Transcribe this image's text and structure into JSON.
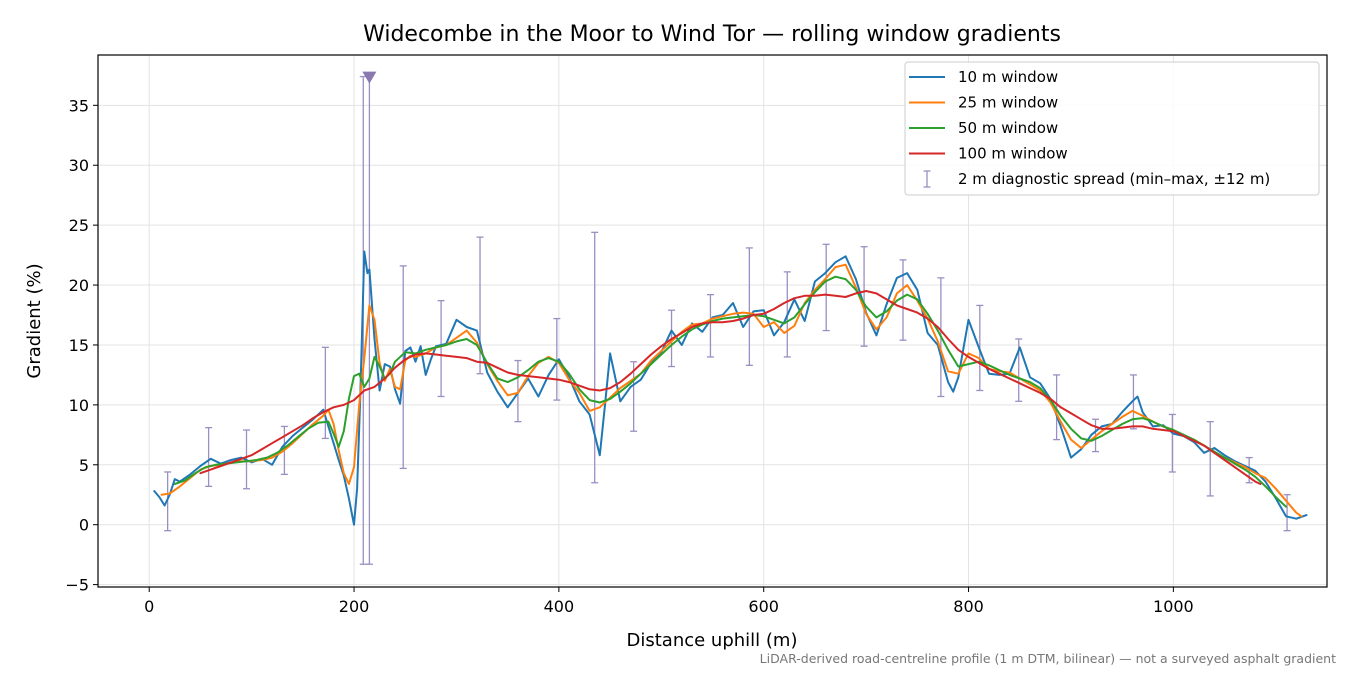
{
  "caption": "LiDAR-derived road-centreline profile (1 m DTM, bilinear) — not a surveyed asphalt gradient",
  "chart_data": {
    "type": "line",
    "title": "Widecombe in the Moor to Wind Tor — rolling window gradients",
    "xlabel": "Distance uphill (m)",
    "ylabel": "Gradient (%)",
    "xlim": [
      -50,
      1150
    ],
    "ylim": [
      -5.2,
      39.2
    ],
    "xticks": [
      0,
      200,
      400,
      600,
      800,
      1000
    ],
    "xtick_labels": [
      "0",
      "200",
      "400",
      "600",
      "800",
      "1000"
    ],
    "yticks": [
      -5,
      0,
      5,
      10,
      15,
      20,
      25,
      30,
      35
    ],
    "ytick_labels": [
      "−5",
      "0",
      "5",
      "10",
      "15",
      "20",
      "25",
      "30",
      "35"
    ],
    "grid": true,
    "legend_position": "top-right",
    "series": [
      {
        "name": "10 m window",
        "color": "#1f77b4",
        "x": [
          5,
          10,
          15,
          20,
          25,
          30,
          40,
          50,
          60,
          70,
          80,
          90,
          100,
          110,
          120,
          130,
          140,
          150,
          160,
          170,
          175,
          180,
          185,
          190,
          195,
          200,
          203,
          206,
          210,
          213,
          215,
          220,
          225,
          230,
          235,
          240,
          245,
          250,
          255,
          260,
          265,
          270,
          275,
          280,
          290,
          300,
          310,
          320,
          330,
          340,
          350,
          360,
          370,
          380,
          390,
          400,
          410,
          420,
          430,
          435,
          440,
          445,
          450,
          460,
          470,
          480,
          490,
          500,
          510,
          520,
          530,
          540,
          550,
          560,
          570,
          580,
          590,
          600,
          610,
          620,
          630,
          640,
          650,
          660,
          670,
          680,
          690,
          700,
          710,
          720,
          730,
          740,
          750,
          760,
          770,
          780,
          785,
          790,
          800,
          810,
          820,
          830,
          840,
          850,
          860,
          870,
          880,
          890,
          900,
          910,
          920,
          930,
          940,
          950,
          960,
          965,
          970,
          980,
          990,
          1000,
          1010,
          1020,
          1030,
          1040,
          1050,
          1060,
          1070,
          1080,
          1090,
          1100,
          1110,
          1120,
          1130
        ],
        "y": [
          2.8,
          2.3,
          1.6,
          2.5,
          3.8,
          3.6,
          4.2,
          4.9,
          5.5,
          5.1,
          5.4,
          5.6,
          5.2,
          5.5,
          5.0,
          6.5,
          7.4,
          8.1,
          8.8,
          9.6,
          8.2,
          6.8,
          5.4,
          4.1,
          2.2,
          0.0,
          3.0,
          10.5,
          22.8,
          21.0,
          21.3,
          15.5,
          11.2,
          13.4,
          13.2,
          11.3,
          10.1,
          14.5,
          14.8,
          13.6,
          14.9,
          12.5,
          13.8,
          14.9,
          15.1,
          17.1,
          16.5,
          16.2,
          12.7,
          11.1,
          9.8,
          11.0,
          12.2,
          10.7,
          12.5,
          13.8,
          12.3,
          10.3,
          9.2,
          7.5,
          5.8,
          10.0,
          14.3,
          10.3,
          11.5,
          12.1,
          13.5,
          14.4,
          16.2,
          15.0,
          16.8,
          16.1,
          17.3,
          17.5,
          18.5,
          16.5,
          17.8,
          17.9,
          15.8,
          16.9,
          18.8,
          17.0,
          20.3,
          21.0,
          21.9,
          22.4,
          20.5,
          17.7,
          15.8,
          18.4,
          20.6,
          21.0,
          19.6,
          16.0,
          15.0,
          11.9,
          11.1,
          12.3,
          17.1,
          14.8,
          12.6,
          12.5,
          12.6,
          14.8,
          12.3,
          11.8,
          10.5,
          8.2,
          5.6,
          6.3,
          7.5,
          8.2,
          8.4,
          9.4,
          10.3,
          10.7,
          9.4,
          8.2,
          8.3,
          7.6,
          7.4,
          6.9,
          6.0,
          6.4,
          5.8,
          5.3,
          4.9,
          4.5,
          3.6,
          2.2,
          0.7,
          0.5,
          0.8
        ]
      },
      {
        "name": "25 m window",
        "color": "#ff7f0e",
        "x": [
          12,
          20,
          30,
          40,
          50,
          60,
          70,
          80,
          90,
          100,
          110,
          120,
          130,
          140,
          150,
          160,
          170,
          175,
          180,
          185,
          190,
          195,
          200,
          205,
          210,
          215,
          220,
          225,
          230,
          235,
          240,
          245,
          250,
          255,
          260,
          270,
          280,
          290,
          300,
          310,
          320,
          330,
          340,
          350,
          360,
          370,
          380,
          390,
          400,
          410,
          420,
          430,
          440,
          450,
          460,
          470,
          480,
          490,
          500,
          510,
          520,
          530,
          540,
          550,
          560,
          570,
          580,
          590,
          600,
          610,
          620,
          630,
          640,
          650,
          660,
          670,
          680,
          690,
          700,
          710,
          720,
          730,
          740,
          750,
          760,
          770,
          780,
          790,
          800,
          810,
          820,
          830,
          840,
          850,
          860,
          870,
          880,
          890,
          900,
          910,
          920,
          930,
          940,
          950,
          960,
          970,
          980,
          990,
          1000,
          1010,
          1020,
          1030,
          1040,
          1050,
          1060,
          1070,
          1080,
          1090,
          1100,
          1110,
          1120,
          1125
        ],
        "y": [
          2.5,
          2.6,
          3.2,
          3.9,
          4.6,
          4.9,
          5.0,
          5.2,
          5.3,
          5.3,
          5.4,
          5.6,
          6.1,
          6.8,
          7.6,
          8.4,
          9.1,
          9.6,
          8.4,
          6.2,
          4.3,
          3.4,
          4.8,
          10.0,
          13.9,
          18.3,
          17.1,
          13.5,
          12.0,
          13.0,
          11.5,
          11.3,
          13.7,
          14.1,
          14.0,
          14.3,
          14.8,
          15.0,
          15.6,
          16.2,
          15.2,
          13.4,
          12.0,
          10.8,
          11.0,
          12.4,
          13.5,
          14.0,
          13.5,
          12.1,
          11.0,
          9.5,
          9.8,
          10.6,
          11.4,
          12.0,
          12.6,
          13.7,
          14.5,
          15.3,
          16.1,
          16.7,
          16.8,
          17.2,
          17.4,
          17.6,
          17.7,
          17.6,
          16.5,
          16.9,
          16.0,
          16.6,
          18.5,
          19.6,
          20.5,
          21.5,
          21.7,
          19.8,
          17.6,
          16.3,
          17.3,
          19.3,
          20.0,
          18.7,
          17.2,
          15.3,
          12.8,
          12.6,
          14.3,
          13.9,
          13.0,
          12.8,
          12.7,
          12.2,
          11.7,
          11.2,
          10.2,
          8.6,
          7.1,
          6.4,
          7.1,
          7.8,
          8.4,
          9.0,
          9.5,
          9.1,
          8.6,
          8.2,
          7.9,
          7.4,
          7.1,
          6.6,
          6.0,
          5.6,
          5.2,
          4.8,
          4.3,
          3.9,
          3.0,
          2.0,
          1.0,
          0.7
        ]
      },
      {
        "name": "50 m window",
        "color": "#2ca02c",
        "x": [
          25,
          35,
          45,
          55,
          65,
          75,
          85,
          95,
          105,
          115,
          125,
          135,
          145,
          155,
          165,
          175,
          180,
          185,
          190,
          195,
          200,
          205,
          210,
          215,
          220,
          225,
          230,
          235,
          240,
          250,
          260,
          270,
          280,
          290,
          300,
          310,
          320,
          330,
          340,
          350,
          360,
          370,
          380,
          390,
          400,
          410,
          420,
          430,
          440,
          450,
          460,
          470,
          480,
          490,
          500,
          510,
          520,
          530,
          540,
          550,
          560,
          570,
          580,
          590,
          600,
          610,
          620,
          630,
          640,
          650,
          660,
          670,
          680,
          690,
          700,
          710,
          720,
          730,
          740,
          750,
          760,
          770,
          780,
          790,
          800,
          810,
          820,
          830,
          840,
          850,
          860,
          870,
          880,
          890,
          900,
          910,
          920,
          930,
          940,
          950,
          960,
          970,
          980,
          990,
          1000,
          1010,
          1020,
          1030,
          1040,
          1050,
          1060,
          1070,
          1080,
          1090,
          1100,
          1110
        ],
        "y": [
          3.4,
          3.7,
          4.3,
          4.8,
          5.0,
          5.1,
          5.2,
          5.3,
          5.4,
          5.6,
          6.0,
          6.6,
          7.3,
          8.0,
          8.5,
          8.6,
          7.6,
          6.5,
          7.8,
          10.5,
          12.4,
          12.6,
          11.5,
          12.2,
          14.0,
          13.2,
          12.2,
          12.6,
          13.6,
          14.4,
          14.3,
          14.6,
          14.8,
          15.0,
          15.3,
          15.5,
          15.0,
          13.5,
          12.2,
          11.9,
          12.3,
          12.9,
          13.6,
          13.9,
          13.6,
          12.6,
          11.3,
          10.4,
          10.2,
          10.5,
          11.1,
          11.8,
          12.6,
          13.4,
          14.2,
          15.0,
          15.7,
          16.3,
          16.7,
          17.0,
          17.2,
          17.3,
          17.4,
          17.5,
          17.4,
          17.1,
          16.8,
          17.3,
          18.4,
          19.4,
          20.3,
          20.7,
          20.5,
          19.6,
          18.2,
          17.3,
          17.8,
          18.7,
          19.2,
          18.8,
          17.6,
          16.2,
          14.6,
          13.2,
          13.4,
          13.6,
          13.3,
          12.9,
          12.5,
          12.2,
          11.9,
          11.4,
          10.4,
          9.1,
          8.0,
          7.2,
          7.0,
          7.4,
          7.9,
          8.4,
          8.8,
          8.9,
          8.6,
          8.2,
          7.9,
          7.5,
          7.1,
          6.6,
          6.1,
          5.6,
          5.1,
          4.6,
          4.0,
          3.2,
          2.3,
          1.5
        ]
      },
      {
        "name": "100 m window",
        "color": "#d62728",
        "x": [
          50,
          60,
          70,
          80,
          90,
          100,
          110,
          120,
          130,
          140,
          150,
          160,
          170,
          180,
          190,
          200,
          210,
          220,
          230,
          240,
          250,
          260,
          270,
          280,
          290,
          300,
          310,
          320,
          330,
          340,
          350,
          360,
          370,
          380,
          390,
          400,
          410,
          420,
          430,
          440,
          450,
          460,
          470,
          480,
          490,
          500,
          510,
          520,
          530,
          540,
          550,
          560,
          570,
          580,
          590,
          600,
          610,
          620,
          630,
          640,
          650,
          660,
          670,
          680,
          690,
          700,
          710,
          720,
          730,
          740,
          750,
          760,
          770,
          780,
          790,
          800,
          810,
          820,
          830,
          840,
          850,
          860,
          870,
          880,
          890,
          900,
          910,
          920,
          930,
          940,
          950,
          960,
          970,
          980,
          990,
          1000,
          1010,
          1020,
          1030,
          1040,
          1050,
          1060,
          1070,
          1080,
          1085
        ],
        "y": [
          4.3,
          4.6,
          4.9,
          5.2,
          5.5,
          5.8,
          6.3,
          6.8,
          7.3,
          7.8,
          8.3,
          8.9,
          9.4,
          9.8,
          10.0,
          10.4,
          11.2,
          11.5,
          12.2,
          13.1,
          13.8,
          14.2,
          14.3,
          14.2,
          14.1,
          14.0,
          13.9,
          13.6,
          13.5,
          13.1,
          12.7,
          12.5,
          12.4,
          12.3,
          12.2,
          12.1,
          11.9,
          11.6,
          11.3,
          11.2,
          11.4,
          11.9,
          12.6,
          13.4,
          14.2,
          14.9,
          15.5,
          16.0,
          16.5,
          16.8,
          16.9,
          16.9,
          17.0,
          17.2,
          17.5,
          17.6,
          18.0,
          18.5,
          18.9,
          19.1,
          19.1,
          19.2,
          19.1,
          19.0,
          19.3,
          19.5,
          19.3,
          18.8,
          18.3,
          18.0,
          17.7,
          17.2,
          16.5,
          15.5,
          14.6,
          14.0,
          13.5,
          13.0,
          12.6,
          12.2,
          11.8,
          11.4,
          11.0,
          10.5,
          9.8,
          9.3,
          8.8,
          8.3,
          8.0,
          8.0,
          8.1,
          8.2,
          8.2,
          8.0,
          7.9,
          7.8,
          7.4,
          7.0,
          6.6,
          6.0,
          5.4,
          4.8,
          4.2,
          3.6,
          3.4
        ]
      }
    ],
    "error_bars": {
      "name": "2 m diagnostic spread (min–max, ±12 m)",
      "color": "#9b8ec2",
      "points": [
        {
          "x": 18,
          "min": -0.5,
          "max": 4.4
        },
        {
          "x": 58,
          "min": 3.2,
          "max": 8.1
        },
        {
          "x": 95,
          "min": 3.0,
          "max": 7.9
        },
        {
          "x": 132,
          "min": 4.2,
          "max": 8.2
        },
        {
          "x": 172,
          "min": 7.2,
          "max": 14.8
        },
        {
          "x": 209,
          "min": -3.3,
          "max": 37.4
        },
        {
          "x": 215,
          "min": -3.3,
          "max": 37.4
        },
        {
          "x": 248,
          "min": 4.7,
          "max": 21.6
        },
        {
          "x": 285,
          "min": 10.7,
          "max": 18.7
        },
        {
          "x": 323,
          "min": 12.6,
          "max": 24.0
        },
        {
          "x": 360,
          "min": 8.6,
          "max": 13.7
        },
        {
          "x": 398,
          "min": 10.4,
          "max": 17.2
        },
        {
          "x": 435,
          "min": 3.5,
          "max": 24.4
        },
        {
          "x": 473,
          "min": 7.8,
          "max": 13.6
        },
        {
          "x": 510,
          "min": 13.2,
          "max": 17.9
        },
        {
          "x": 548,
          "min": 14.0,
          "max": 19.2
        },
        {
          "x": 586,
          "min": 13.3,
          "max": 23.1
        },
        {
          "x": 623,
          "min": 14.0,
          "max": 21.1
        },
        {
          "x": 661,
          "min": 16.2,
          "max": 23.4
        },
        {
          "x": 698,
          "min": 14.9,
          "max": 23.2
        },
        {
          "x": 736,
          "min": 15.4,
          "max": 22.1
        },
        {
          "x": 773,
          "min": 10.7,
          "max": 20.6
        },
        {
          "x": 811,
          "min": 11.2,
          "max": 18.3
        },
        {
          "x": 849,
          "min": 10.3,
          "max": 15.5
        },
        {
          "x": 886,
          "min": 7.1,
          "max": 12.5
        },
        {
          "x": 924,
          "min": 6.1,
          "max": 8.8
        },
        {
          "x": 961,
          "min": 8.0,
          "max": 12.5
        },
        {
          "x": 999,
          "min": 4.4,
          "max": 9.2
        },
        {
          "x": 1036,
          "min": 2.4,
          "max": 8.6
        },
        {
          "x": 1074,
          "min": 3.5,
          "max": 5.6
        },
        {
          "x": 1111,
          "min": -0.5,
          "max": 2.5
        }
      ],
      "clipped_marker": {
        "x": 215,
        "y": 37.4
      }
    }
  }
}
